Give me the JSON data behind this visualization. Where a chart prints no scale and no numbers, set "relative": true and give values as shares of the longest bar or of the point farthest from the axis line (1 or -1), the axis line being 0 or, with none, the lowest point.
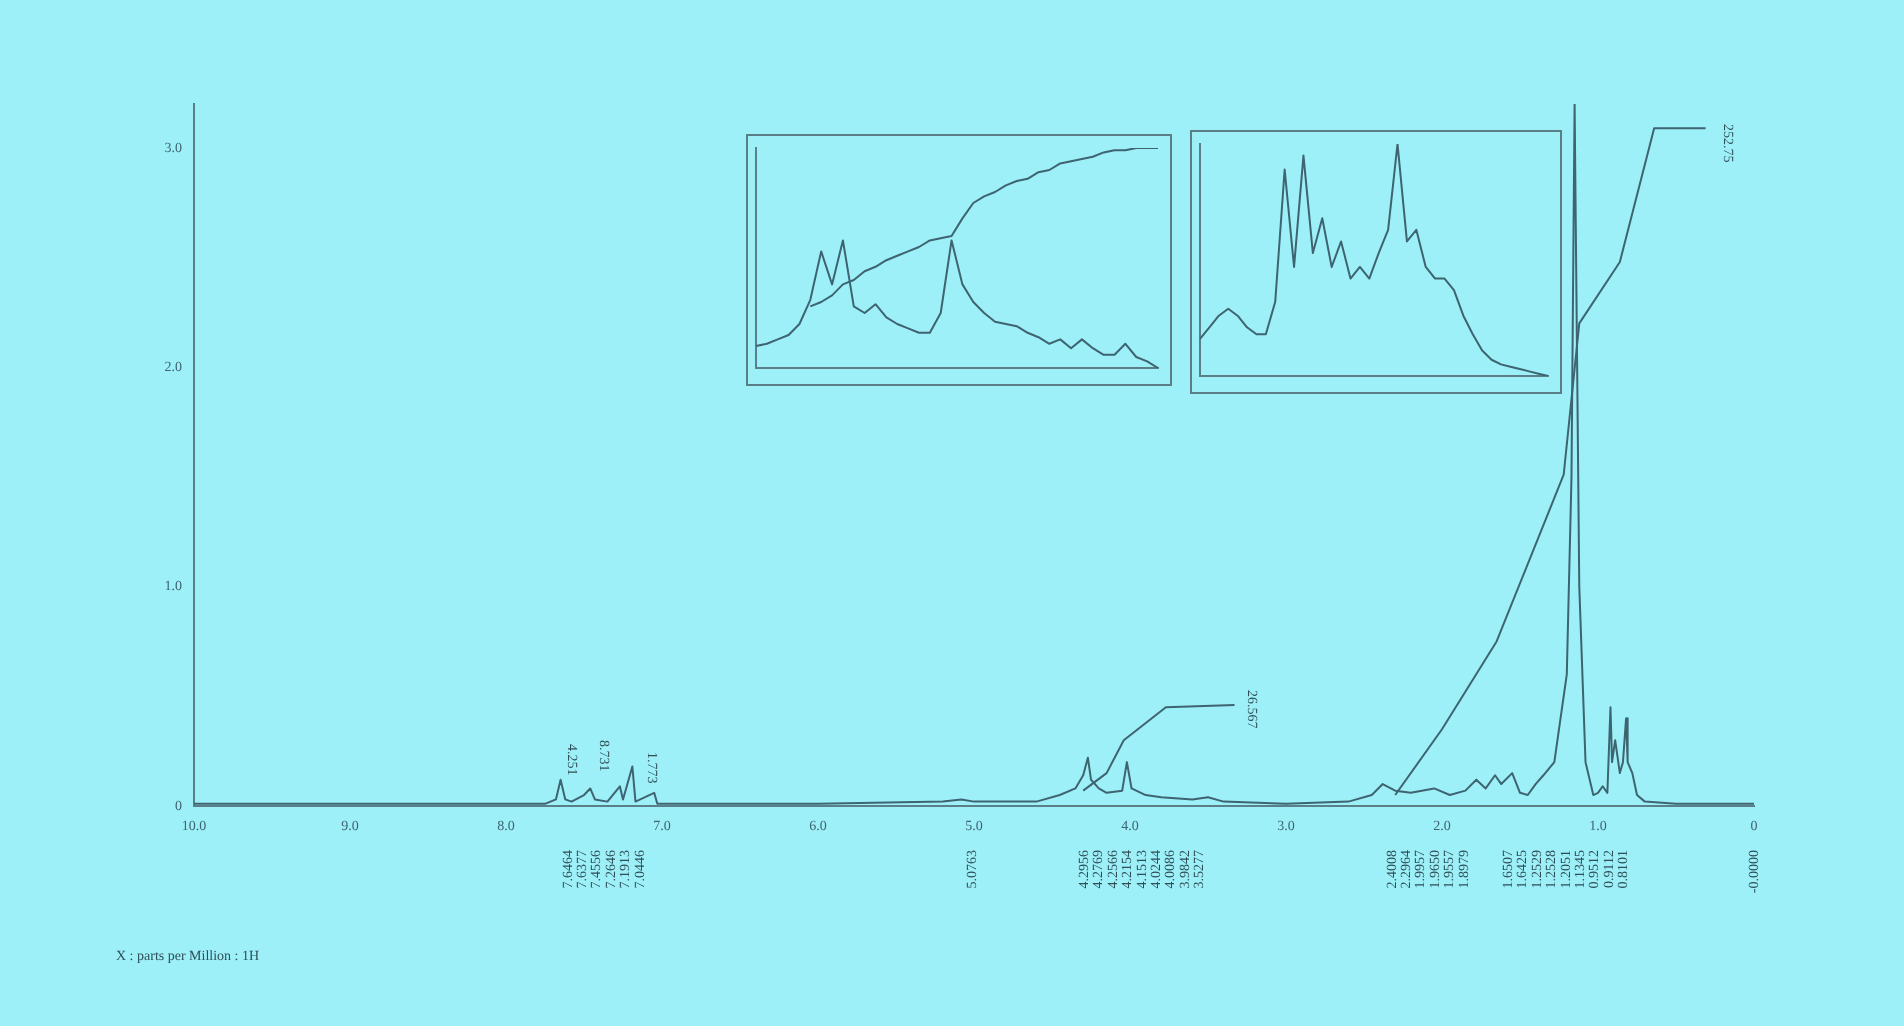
{
  "chart_data": [
    {
      "type": "line",
      "xlabel": "X : parts per Million : 1H",
      "xlim": [
        10,
        0
      ],
      "xticks": [
        {
          "value": 10,
          "label": "10.0"
        },
        {
          "value": 9,
          "label": "9.0"
        },
        {
          "value": 8,
          "label": "8.0"
        },
        {
          "value": 7,
          "label": "7.0"
        },
        {
          "value": 6,
          "label": "6.0"
        },
        {
          "value": 5,
          "label": "5.0"
        },
        {
          "value": 4,
          "label": "4.0"
        },
        {
          "value": 3,
          "label": "3.0"
        },
        {
          "value": 2,
          "label": "2.0"
        },
        {
          "value": 1,
          "label": "1.0"
        },
        0
      ],
      "ylim": [
        0,
        3.2
      ],
      "yticks": [
        0,
        {
          "value": 1,
          "label": "1.0"
        },
        {
          "value": 2,
          "label": "2.0"
        },
        {
          "value": 3,
          "label": "3.0"
        }
      ],
      "marker": "none",
      "color": "#3d6470",
      "series": [
        {
          "x": [
            10,
            8,
            7.75,
            7.68,
            7.65,
            7.62,
            7.58,
            7.5,
            7.46,
            7.43,
            7.35,
            7.27,
            7.25,
            7.19,
            7.17,
            7.05,
            7.03,
            6,
            5.2,
            5.08,
            5,
            4.6,
            4.45,
            4.35,
            4.3,
            4.27,
            4.25,
            4.2,
            4.15,
            4.05,
            4.02,
            3.99,
            3.9,
            3.8,
            3.6,
            3.5,
            3.4,
            3,
            2.6,
            2.45,
            2.38,
            2.3,
            2.2,
            2.05,
            1.95,
            1.85,
            1.78,
            1.72,
            1.66,
            1.62,
            1.55,
            1.5,
            1.45,
            1.4,
            1.35,
            1.28,
            1.25,
            1.2,
            1.17,
            1.15,
            1.12,
            1.08,
            1.03,
            1,
            0.97,
            0.94,
            0.92,
            0.91,
            0.89,
            0.86,
            0.84,
            0.82,
            0.81,
            0.78,
            0.75,
            0.7,
            0.5,
            0
          ],
          "values": [
            0.01,
            0.01,
            0.01,
            0.03,
            0.12,
            0.03,
            0.02,
            0.05,
            0.08,
            0.03,
            0.02,
            0.09,
            0.03,
            0.18,
            0.02,
            0.06,
            0.01,
            0.01,
            0.02,
            0.03,
            0.02,
            0.02,
            0.05,
            0.08,
            0.14,
            0.22,
            0.12,
            0.08,
            0.06,
            0.07,
            0.2,
            0.08,
            0.05,
            0.04,
            0.03,
            0.04,
            0.02,
            0.01,
            0.02,
            0.05,
            0.1,
            0.07,
            0.06,
            0.08,
            0.05,
            0.07,
            0.12,
            0.08,
            0.14,
            0.1,
            0.15,
            0.06,
            0.05,
            0.1,
            0.14,
            0.2,
            0.35,
            0.6,
            1.5,
            3.2,
            1,
            0.2,
            0.05,
            0.06,
            0.09,
            0.06,
            0.45,
            0.2,
            0.3,
            0.15,
            0.2,
            0.4,
            0.2,
            0.15,
            0.05,
            0.02,
            0.01,
            0.01
          ]
        },
        {
          "x": [
            2.3,
            2,
            1.65,
            1.22,
            1.12,
            0.86,
            0.64,
            0.31
          ],
          "values": [
            0.05,
            0.35,
            0.75,
            1.51,
            2.2,
            2.48,
            3.09,
            3.09
          ]
        },
        {
          "x": [
            4.3,
            4.15,
            4.04,
            3.77,
            3.33
          ],
          "values": [
            0.07,
            0.15,
            0.3,
            0.45,
            0.46
          ]
        }
      ],
      "annotations": [
        "252.75",
        "26.567",
        "4.251",
        "8.731",
        "1.773",
        "7.6464",
        "7.6377",
        "7.4556",
        "7.2646",
        "7.1913",
        "7.0446",
        "5.0763",
        "4.2956",
        "4.2769",
        "4.2566",
        "4.2154",
        "4.1513",
        "4.0244",
        "4.0086",
        "3.9842",
        "3.5277",
        "2.4008",
        "2.2964",
        "1.9957",
        "1.9650",
        "1.9557",
        "1.8979",
        "1.6507",
        "1.6425",
        "1.2529",
        "1.2528",
        "1.2051",
        "1.1345",
        "0.9512",
        "0.9112",
        "0.8101",
        "-0.0000"
      ]
    },
    {
      "type": "line",
      "relative": true,
      "marker": "none",
      "color": "#3d6470",
      "categories": [
        null,
        null,
        null,
        null,
        null,
        null,
        null,
        null,
        null,
        null,
        null,
        null,
        null,
        null,
        null,
        null,
        null,
        null,
        null,
        null,
        null,
        null,
        null,
        null,
        null,
        null,
        null,
        null,
        null,
        null,
        null,
        null,
        null,
        null,
        null,
        null,
        null,
        null
      ],
      "series": [
        {
          "values": [
            0.1,
            0.11,
            0.13,
            0.15,
            0.2,
            0.31,
            0.53,
            0.38,
            0.58,
            0.28,
            0.25,
            0.29,
            0.23,
            0.2,
            0.18,
            0.16,
            0.16,
            0.25,
            0.58,
            0.38,
            0.3,
            0.25,
            0.21,
            0.2,
            0.19,
            0.16,
            0.14,
            0.11,
            0.13,
            0.09,
            0.13,
            0.09,
            0.06,
            0.06,
            0.11,
            0.05,
            0.03,
            0
          ]
        },
        {
          "values": [
            null,
            null,
            null,
            null,
            null,
            0.28,
            0.3,
            0.33,
            0.38,
            0.4,
            0.44,
            0.46,
            0.49,
            0.51,
            0.53,
            0.55,
            0.58,
            0.59,
            0.6,
            0.68,
            0.75,
            0.78,
            0.8,
            0.83,
            0.85,
            0.86,
            0.89,
            0.9,
            0.93,
            0.94,
            0.95,
            0.96,
            0.98,
            0.99,
            0.99,
            1,
            1,
            1
          ]
        }
      ]
    },
    {
      "type": "line",
      "relative": true,
      "marker": "none",
      "color": "#3d6470",
      "categories": [
        null,
        null,
        null,
        null,
        null,
        null,
        null,
        null,
        null,
        null,
        null,
        null,
        null,
        null,
        null,
        null,
        null,
        null,
        null,
        null,
        null,
        null,
        null,
        null,
        null,
        null,
        null,
        null,
        null,
        null,
        null,
        null,
        null,
        null,
        null,
        null,
        null,
        null
      ],
      "series": [
        {
          "values": [
            0.16,
            0.21,
            0.26,
            0.29,
            0.26,
            0.21,
            0.18,
            0.18,
            0.32,
            0.89,
            0.47,
            0.95,
            0.53,
            0.68,
            0.47,
            0.58,
            0.42,
            0.47,
            0.42,
            0.53,
            0.63,
            1,
            0.58,
            0.63,
            0.47,
            0.42,
            0.42,
            0.37,
            0.26,
            0.18,
            0.11,
            0.07,
            0.05,
            0.04,
            0.03,
            0.02,
            0.01,
            0
          ]
        }
      ]
    }
  ]
}
